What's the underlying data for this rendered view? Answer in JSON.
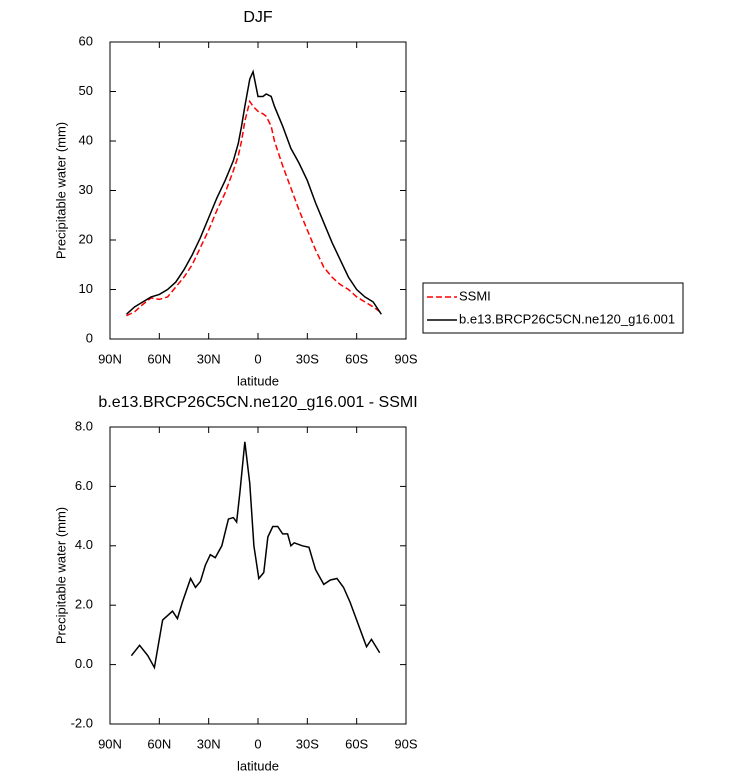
{
  "chart_data": [
    {
      "type": "line",
      "title": "DJF",
      "x_label": "latitude",
      "y_label": "Precipitable water (mm)",
      "x": [
        80,
        75,
        70,
        65,
        60,
        55,
        50,
        45,
        40,
        35,
        30,
        25,
        20,
        15,
        12,
        10,
        8,
        5,
        3,
        0,
        -3,
        -5,
        -8,
        -10,
        -15,
        -20,
        -25,
        -30,
        -35,
        -40,
        -45,
        -50,
        -55,
        -60,
        -65,
        -70,
        -75
      ],
      "xlim": [
        90,
        -90
      ],
      "xticks": [
        {
          "value": 90,
          "label": "90N"
        },
        {
          "value": 60,
          "label": "60N"
        },
        {
          "value": 30,
          "label": "30N"
        },
        0,
        {
          "value": -30,
          "label": "30S"
        },
        {
          "value": -60,
          "label": "60S"
        },
        {
          "value": -90,
          "label": "90S"
        }
      ],
      "ylim": [
        0,
        60
      ],
      "yticks": [
        0,
        10,
        20,
        30,
        40,
        50,
        60
      ],
      "legend": "right",
      "series": [
        {
          "name": "SSMI",
          "color": "#ff0000",
          "dash": "dashed",
          "values": [
            4.7,
            5.5,
            7,
            8.3,
            8,
            8.5,
            10.5,
            12.5,
            15,
            18.5,
            22,
            26,
            29.5,
            34,
            37,
            40,
            44,
            48,
            47,
            46,
            45.5,
            45,
            43,
            40,
            35,
            30.5,
            26,
            22,
            18,
            14.5,
            12.5,
            11,
            10,
            8.5,
            7.5,
            6.5,
            5.3
          ]
        },
        {
          "name": "b.e13.BRCP26C5CN.ne120_g16.001",
          "color": "#000000",
          "dash": "solid",
          "values": [
            5,
            6.5,
            7.5,
            8.5,
            9,
            10,
            11.5,
            14,
            17,
            20.5,
            24.5,
            28.5,
            32,
            36,
            39.5,
            43,
            47,
            52.5,
            54,
            49,
            49,
            49.5,
            49,
            47,
            43,
            38.5,
            35.5,
            32,
            27.5,
            23.5,
            19.5,
            16,
            12.5,
            10,
            8.5,
            7.5,
            5
          ]
        }
      ]
    },
    {
      "type": "line",
      "title": "b.e13.BRCP26C5CN.ne120_g16.001 - SSMI",
      "x_label": "latitude",
      "y_label": "Precipitable water (mm)",
      "x": [
        77,
        72,
        67,
        63,
        58,
        52,
        49,
        46,
        41,
        38,
        35,
        32,
        29,
        26,
        22,
        18,
        15,
        13,
        11,
        8,
        5,
        2.5,
        -0.5,
        -3.5,
        -6,
        -9,
        -12,
        -15,
        -18,
        -20,
        -22,
        -27,
        -31,
        -35,
        -40,
        -44,
        -48,
        -52,
        -56,
        -61,
        -66,
        -69,
        -74
      ],
      "xlim": [
        90,
        -90
      ],
      "xticks": [
        {
          "value": 90,
          "label": "90N"
        },
        {
          "value": 60,
          "label": "60N"
        },
        {
          "value": 30,
          "label": "30N"
        },
        0,
        {
          "value": -30,
          "label": "30S"
        },
        {
          "value": -60,
          "label": "60S"
        },
        {
          "value": -90,
          "label": "90S"
        }
      ],
      "ylim": [
        -2,
        8
      ],
      "yticks": [
        {
          "value": -2,
          "label": "-2.0"
        },
        {
          "value": 0,
          "label": "0.0"
        },
        {
          "value": 2,
          "label": "2.0"
        },
        {
          "value": 4,
          "label": "4.0"
        },
        {
          "value": 6,
          "label": "6.0"
        },
        {
          "value": 8,
          "label": "8.0"
        }
      ],
      "color": "#000000",
      "values": [
        0.3,
        0.65,
        0.3,
        -0.1,
        1.5,
        1.8,
        1.55,
        2.1,
        2.9,
        2.6,
        2.8,
        3.35,
        3.7,
        3.6,
        4.0,
        4.9,
        4.95,
        4.8,
        5.8,
        7.5,
        6.1,
        4.0,
        2.9,
        3.1,
        4.3,
        4.65,
        4.65,
        4.4,
        4.4,
        4.0,
        4.1,
        4.0,
        3.95,
        3.2,
        2.7,
        2.85,
        2.9,
        2.6,
        2.1,
        1.35,
        0.6,
        0.85,
        0.4
      ]
    }
  ]
}
